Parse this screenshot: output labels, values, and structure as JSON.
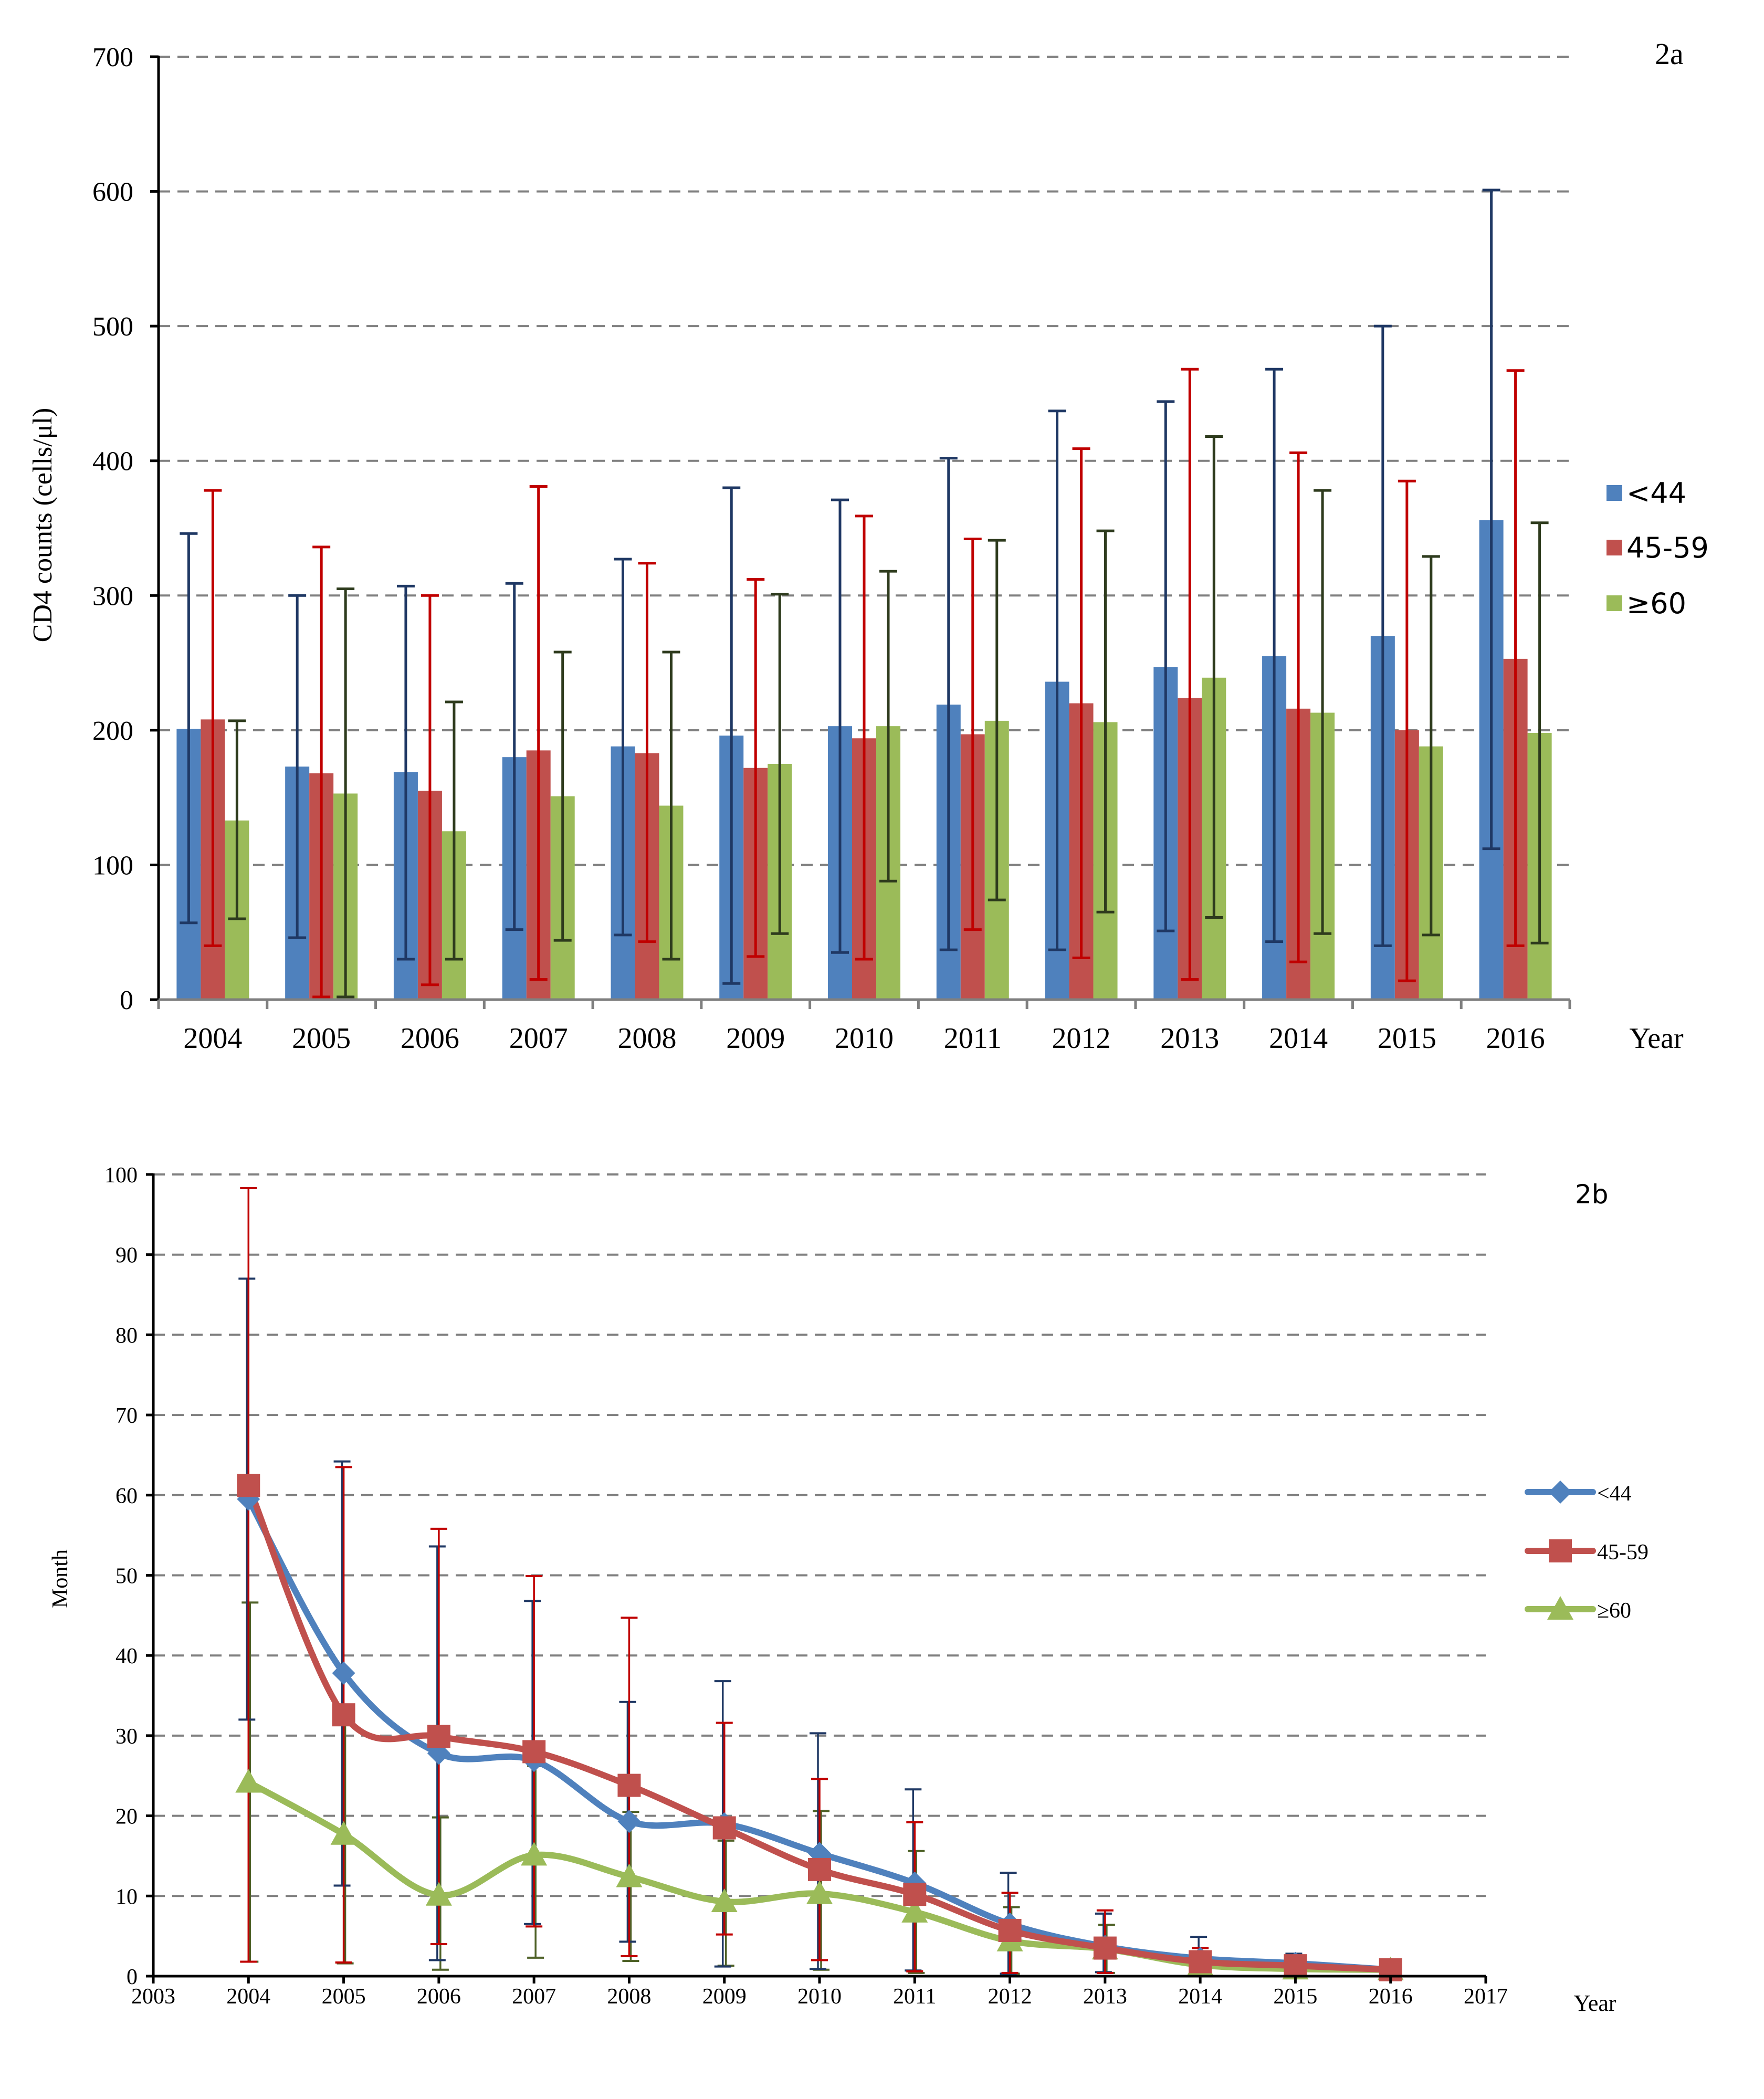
{
  "chart_data": [
    {
      "id": "2a",
      "type": "bar",
      "panel_label": "2a",
      "title": "",
      "xlabel": "Year",
      "ylabel": "CD4 counts (cells/μl)",
      "ylim": [
        0,
        700
      ],
      "yticks": [
        0,
        100,
        200,
        300,
        400,
        500,
        600,
        700
      ],
      "grid": true,
      "legend_position": "right",
      "categories": [
        "2004",
        "2005",
        "2006",
        "2007",
        "2008",
        "2009",
        "2010",
        "2011",
        "2012",
        "2013",
        "2014",
        "2015",
        "2016"
      ],
      "series": [
        {
          "name": "<44",
          "color": "#4f81bd",
          "error_color": "#1f3864",
          "values": [
            201,
            173,
            169,
            180,
            188,
            196,
            203,
            219,
            236,
            247,
            255,
            270,
            356
          ],
          "error_low": [
            57,
            46,
            30,
            52,
            48,
            12,
            35,
            37,
            37,
            51,
            43,
            40,
            112
          ],
          "error_high": [
            346,
            300,
            307,
            309,
            327,
            380,
            371,
            402,
            437,
            444,
            468,
            500,
            601
          ]
        },
        {
          "name": "45-59",
          "color": "#c0504d",
          "error_color": "#c00000",
          "values": [
            208,
            168,
            155,
            185,
            183,
            172,
            194,
            197,
            220,
            224,
            216,
            200,
            253
          ],
          "error_low": [
            40,
            2,
            11,
            15,
            43,
            32,
            30,
            52,
            31,
            15,
            28,
            14,
            40
          ],
          "error_high": [
            378,
            336,
            300,
            381,
            324,
            312,
            359,
            342,
            409,
            468,
            406,
            385,
            467
          ]
        },
        {
          "name": "≥60",
          "color": "#9bbb59",
          "error_color": "#2e3b1d",
          "values": [
            133,
            153,
            125,
            151,
            144,
            175,
            203,
            207,
            206,
            239,
            213,
            188,
            198
          ],
          "error_low": [
            60,
            2,
            30,
            44,
            30,
            49,
            88,
            74,
            65,
            61,
            49,
            48,
            42
          ],
          "error_high": [
            207,
            305,
            221,
            258,
            258,
            301,
            318,
            341,
            348,
            418,
            378,
            329,
            354
          ]
        }
      ]
    },
    {
      "id": "2b",
      "type": "line",
      "panel_label": "2b",
      "title": "",
      "xlabel": "Year",
      "ylabel": "Month",
      "xlim": [
        2003,
        2017
      ],
      "xticks": [
        2003,
        2004,
        2005,
        2006,
        2007,
        2008,
        2009,
        2010,
        2011,
        2012,
        2013,
        2014,
        2015,
        2016,
        2017
      ],
      "ylim": [
        0,
        100
      ],
      "yticks": [
        0,
        10,
        20,
        30,
        40,
        50,
        60,
        70,
        80,
        90,
        100
      ],
      "grid": true,
      "legend_position": "right",
      "x": [
        2004,
        2005,
        2006,
        2007,
        2008,
        2009,
        2010,
        2011,
        2012,
        2013,
        2014,
        2015,
        2016
      ],
      "series": [
        {
          "name": "<44",
          "color": "#4f81bd",
          "error_color": "#1f3864",
          "marker": "diamond",
          "values": [
            59.5,
            37.8,
            27.8,
            26.9,
            19.3,
            19.0,
            15.3,
            11.6,
            6.5,
            3.7,
            2.2,
            1.6,
            0.8
          ],
          "error_low": [
            32.0,
            11.3,
            2.0,
            6.5,
            4.3,
            1.2,
            0.9,
            0.7,
            0.3,
            0.5,
            0.3,
            0.2,
            0.2
          ],
          "error_high": [
            87.0,
            64.2,
            53.6,
            46.8,
            34.2,
            36.8,
            30.3,
            23.3,
            12.9,
            7.8,
            4.9,
            2.8,
            1.4
          ]
        },
        {
          "name": "45-59",
          "color": "#c0504d",
          "error_color": "#c00000",
          "marker": "square",
          "values": [
            61.2,
            32.6,
            29.9,
            28.0,
            23.8,
            18.5,
            13.3,
            10.2,
            5.7,
            3.5,
            1.8,
            1.3,
            0.8
          ],
          "error_low": [
            1.8,
            1.7,
            4.0,
            6.2,
            2.5,
            5.2,
            2.0,
            0.6,
            0.4,
            0.4,
            0.2,
            0.2,
            0.2
          ],
          "error_high": [
            98.3,
            63.5,
            55.8,
            49.9,
            44.7,
            31.6,
            24.6,
            19.2,
            10.4,
            8.2,
            3.5,
            2.5,
            1.4
          ]
        },
        {
          "name": "≥60",
          "color": "#9bbb59",
          "error_color": "#4f6228",
          "marker": "triangle",
          "values": [
            24.2,
            17.7,
            10.1,
            15.1,
            12.4,
            9.3,
            10.3,
            8.0,
            4.4,
            3.4,
            1.4,
            0.9,
            0.8
          ],
          "error_low": [
            1.8,
            1.6,
            0.8,
            2.3,
            1.9,
            1.3,
            0.8,
            0.4,
            0.3,
            0.4,
            0.2,
            0.2,
            0.2
          ],
          "error_high": [
            46.6,
            33.0,
            19.8,
            26.2,
            20.5,
            16.9,
            20.6,
            15.6,
            8.6,
            6.4,
            2.8,
            1.7,
            1.3
          ]
        }
      ]
    }
  ]
}
